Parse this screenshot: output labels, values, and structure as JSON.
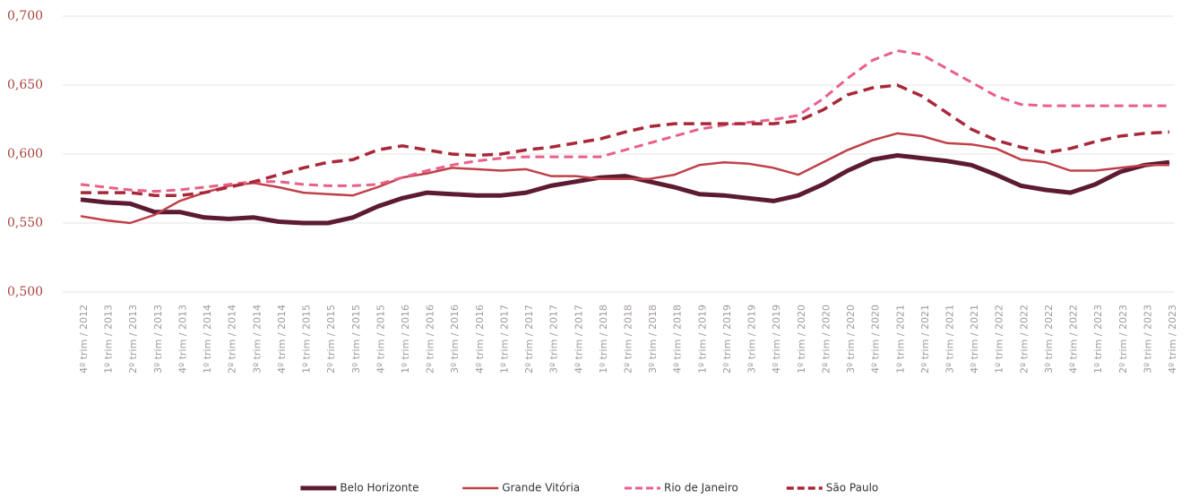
{
  "chart_data": {
    "type": "line",
    "categories": [
      "4º trim / 2012",
      "1º trim / 2013",
      "2º trim / 2013",
      "3º trim / 2013",
      "4º trim / 2013",
      "1º trim / 2014",
      "2º trim / 2014",
      "3º trim / 2014",
      "4º trim / 2014",
      "1º trim / 2015",
      "2º trim / 2015",
      "3º trim / 2015",
      "4º trim / 2015",
      "1º trim / 2016",
      "2º trim / 2016",
      "3º trim / 2016",
      "4º trim / 2016",
      "1º trim / 2017",
      "2º trim / 2017",
      "3º trim / 2017",
      "4º trim / 2017",
      "1º trim / 2018",
      "2º trim / 2018",
      "3º trim / 2018",
      "4º trim / 2018",
      "1º trim / 2019",
      "2º trim / 2019",
      "3º trim / 2019",
      "4º trim / 2019",
      "1º trim / 2020",
      "2º trim / 2020",
      "3º trim / 2020",
      "4º trim / 2020",
      "1º trim / 2021",
      "2º trim / 2021",
      "3º trim / 2021",
      "4º trim / 2021",
      "1º trim / 2022",
      "2º trim / 2022",
      "3º trim / 2022",
      "4º trim / 2022",
      "1º trim / 2023",
      "2º trim / 2023",
      "3º trim / 2023",
      "4º trim / 2023"
    ],
    "series": [
      {
        "name": "Belo Horizonte",
        "color": "#5c1a33",
        "width": 5,
        "dash": "none",
        "values": [
          0.567,
          0.565,
          0.564,
          0.558,
          0.558,
          0.554,
          0.553,
          0.554,
          0.551,
          0.55,
          0.55,
          0.554,
          0.562,
          0.568,
          0.572,
          0.571,
          0.57,
          0.57,
          0.572,
          0.577,
          0.58,
          0.583,
          0.584,
          0.58,
          0.576,
          0.571,
          0.57,
          0.568,
          0.566,
          0.57,
          0.578,
          0.588,
          0.596,
          0.599,
          0.597,
          0.595,
          0.592,
          0.585,
          0.577,
          0.574,
          0.572,
          0.578,
          0.587,
          0.592,
          0.594
        ]
      },
      {
        "name": "Grande Vitória",
        "color": "#c0404a",
        "width": 2.5,
        "dash": "none",
        "values": [
          0.555,
          0.552,
          0.55,
          0.556,
          0.566,
          0.572,
          0.577,
          0.579,
          0.576,
          0.572,
          0.571,
          0.57,
          0.576,
          0.583,
          0.586,
          0.59,
          0.589,
          0.588,
          0.589,
          0.584,
          0.584,
          0.582,
          0.582,
          0.582,
          0.585,
          0.592,
          0.594,
          0.593,
          0.59,
          0.585,
          0.594,
          0.603,
          0.61,
          0.615,
          0.613,
          0.608,
          0.607,
          0.604,
          0.596,
          0.594,
          0.588,
          0.588,
          0.59,
          0.592,
          0.592
        ]
      },
      {
        "name": "Rio de Janeiro",
        "color": "#e8608a",
        "width": 3,
        "dash": "10 6",
        "values": [
          0.578,
          0.576,
          0.574,
          0.573,
          0.574,
          0.576,
          0.578,
          0.58,
          0.58,
          0.578,
          0.577,
          0.577,
          0.578,
          0.583,
          0.588,
          0.592,
          0.595,
          0.597,
          0.598,
          0.598,
          0.598,
          0.598,
          0.603,
          0.608,
          0.613,
          0.618,
          0.621,
          0.623,
          0.625,
          0.628,
          0.64,
          0.655,
          0.668,
          0.675,
          0.672,
          0.662,
          0.652,
          0.642,
          0.636,
          0.635,
          0.635,
          0.635,
          0.635,
          0.635,
          0.635
        ]
      },
      {
        "name": "São Paulo",
        "color": "#a8283a",
        "width": 3.5,
        "dash": "12 7",
        "values": [
          0.572,
          0.572,
          0.572,
          0.57,
          0.57,
          0.572,
          0.576,
          0.58,
          0.585,
          0.59,
          0.594,
          0.596,
          0.603,
          0.606,
          0.603,
          0.6,
          0.599,
          0.6,
          0.603,
          0.605,
          0.608,
          0.611,
          0.616,
          0.62,
          0.622,
          0.622,
          0.622,
          0.622,
          0.622,
          0.624,
          0.632,
          0.643,
          0.648,
          0.65,
          0.642,
          0.63,
          0.618,
          0.61,
          0.605,
          0.601,
          0.604,
          0.609,
          0.613,
          0.615,
          0.616
        ]
      }
    ],
    "ylim": [
      0.5,
      0.7
    ],
    "yticks": [
      {
        "value": 0.5,
        "label": "0,500"
      },
      {
        "value": 0.55,
        "label": "0,550"
      },
      {
        "value": 0.6,
        "label": "0,600"
      },
      {
        "value": 0.65,
        "label": "0,650"
      },
      {
        "value": 0.7,
        "label": "0,700"
      }
    ],
    "grid": true,
    "legend": "bottom"
  }
}
